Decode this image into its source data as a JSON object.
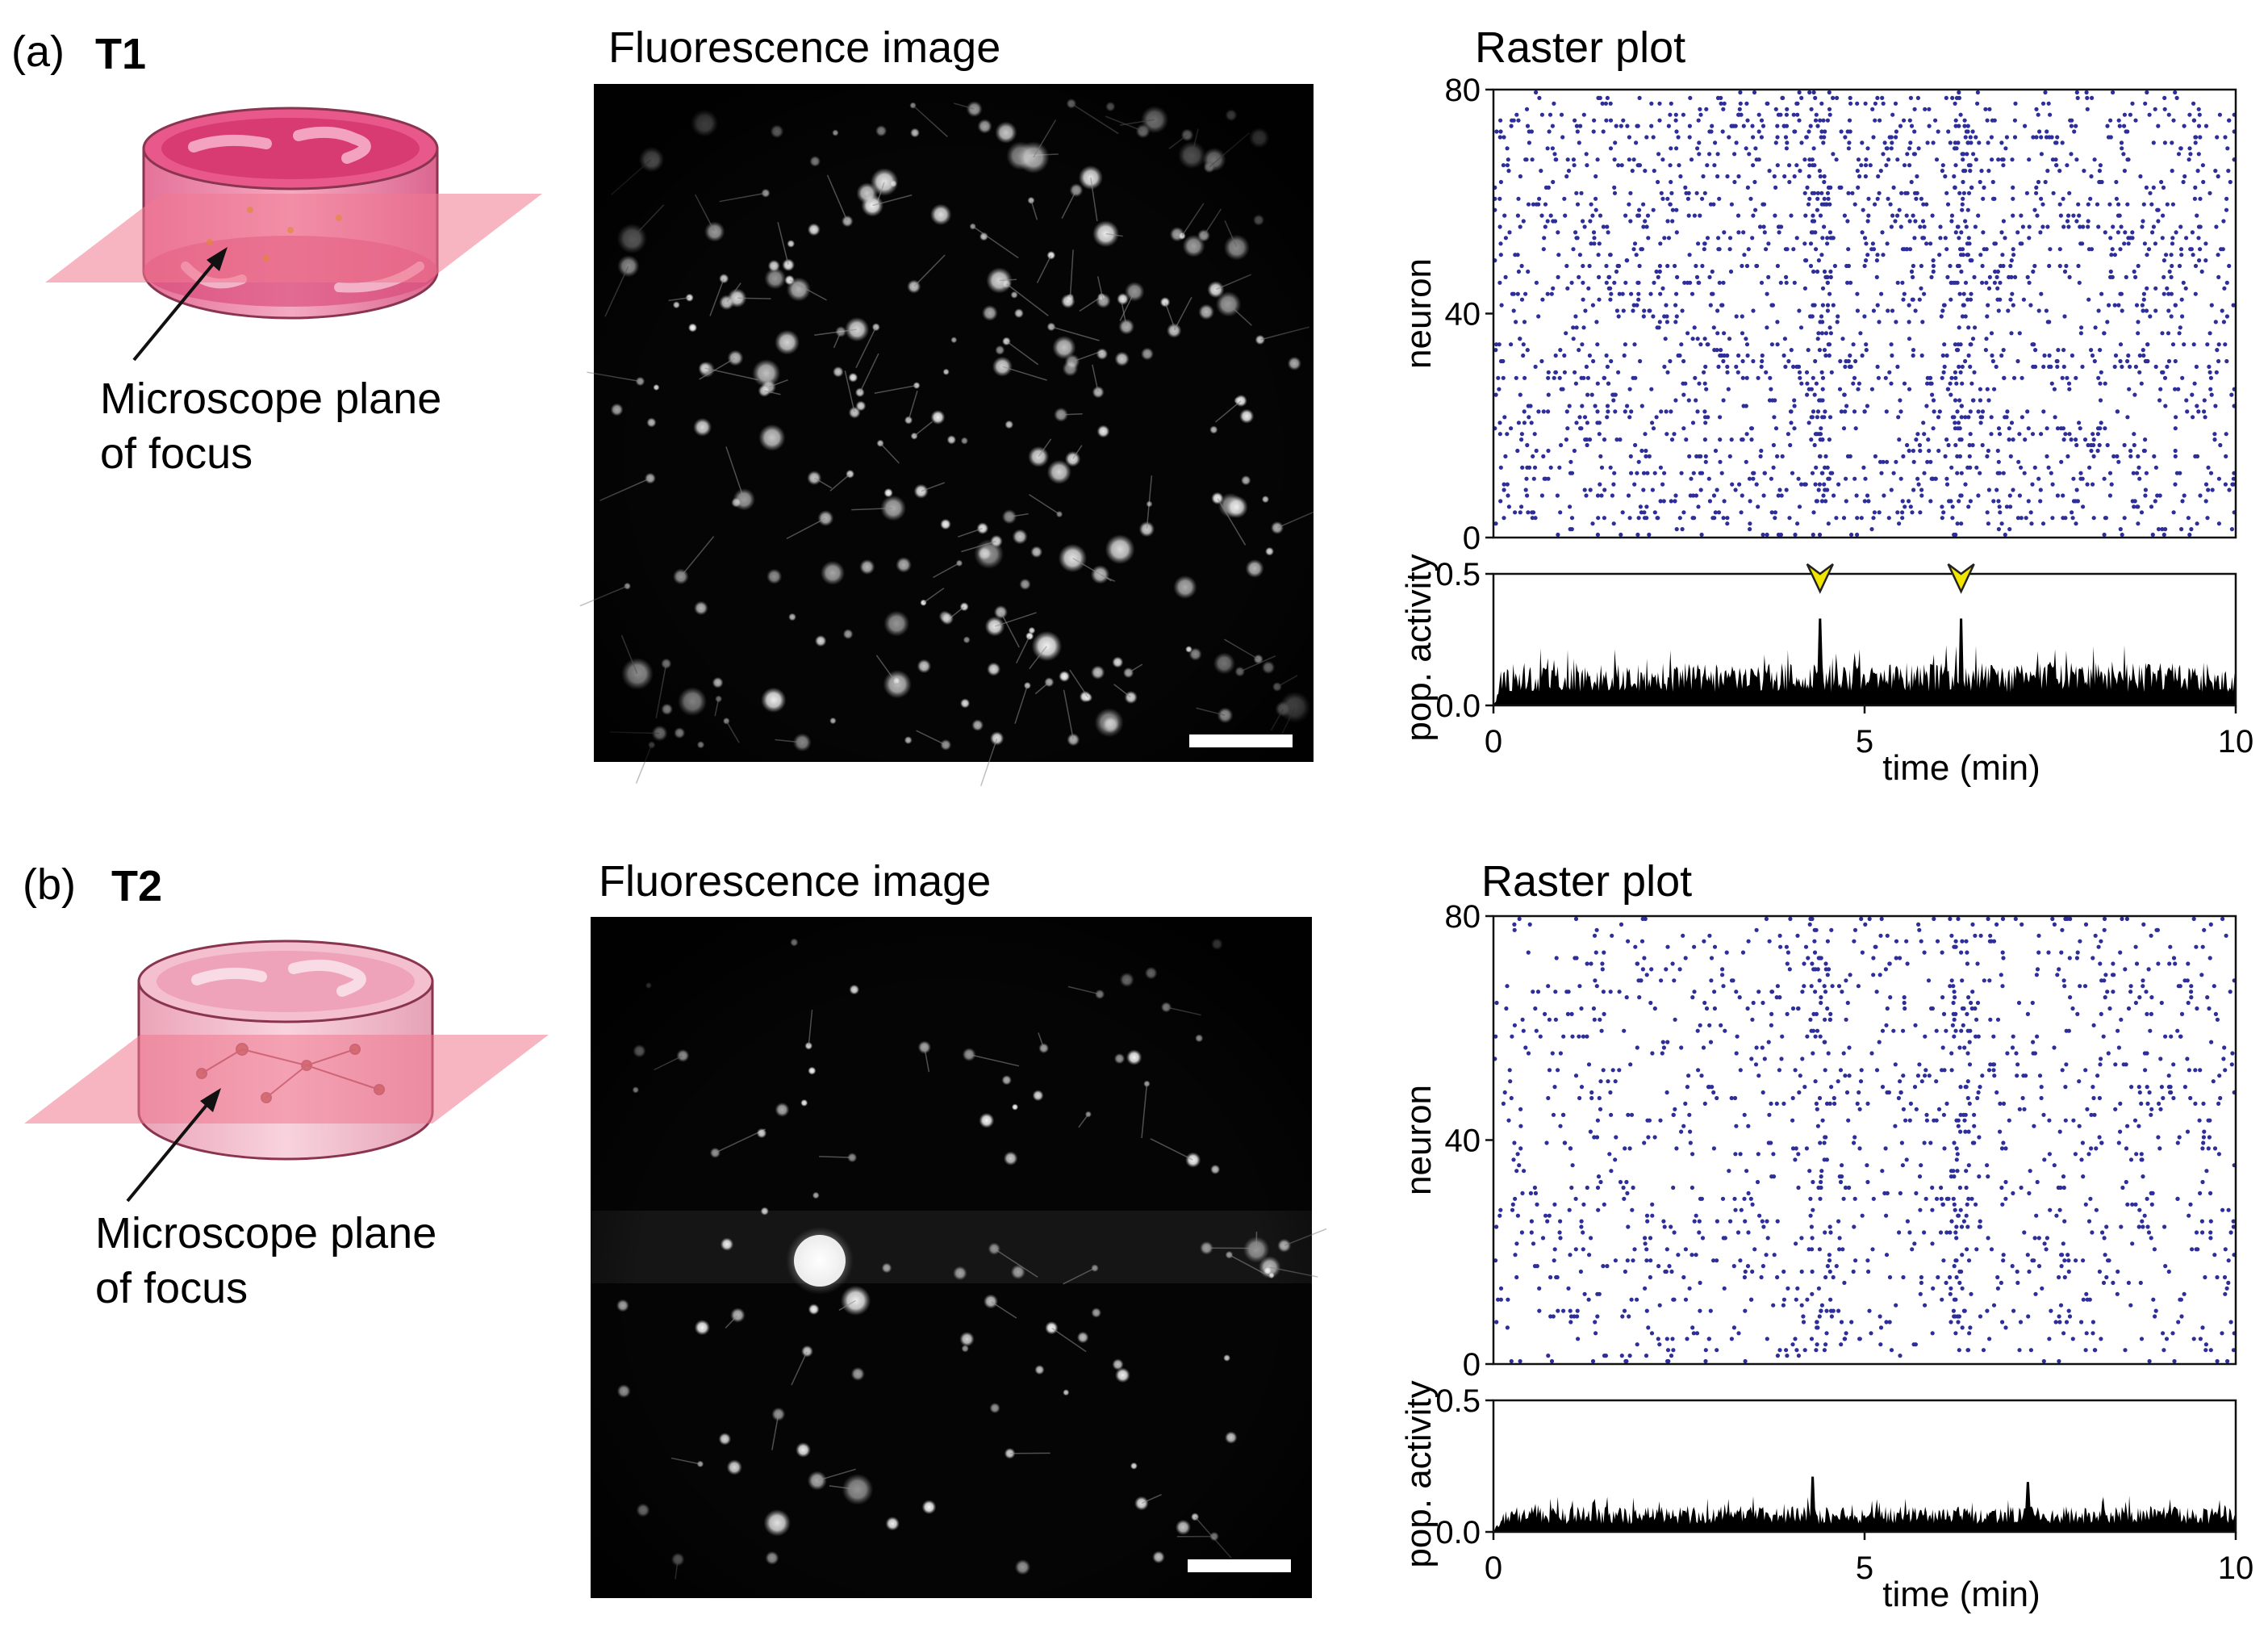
{
  "panels": [
    {
      "letter": "(a)",
      "tag": "T1",
      "dish_label_line1": "Microscope plane",
      "dish_label_line2": "of focus",
      "image_title": "Fluorescence image",
      "raster_title": "Raster plot"
    },
    {
      "letter": "(b)",
      "tag": "T2",
      "dish_label_line1": "Microscope plane",
      "dish_label_line2": "of focus",
      "image_title": "Fluorescence image",
      "raster_title": "Raster plot"
    }
  ],
  "colors": {
    "spike": "#2e2e9a",
    "activity": "#000000",
    "arrowhead": "#f2e600",
    "dish": "#e8608c",
    "plane": "#f08aa0",
    "micrograph_bg": "#050505"
  },
  "chart_data": [
    {
      "type": "scatter",
      "title": "Raster plot",
      "panel": "T1",
      "xlabel": "",
      "ylabel": "neuron",
      "xlim": [
        0,
        10
      ],
      "ylim": [
        0,
        80
      ],
      "yticks": [
        "0",
        "40",
        "80"
      ],
      "n_neurons": 80,
      "approx_spikes": 2400,
      "series": [
        {
          "values": []
        }
      ]
    },
    {
      "type": "area",
      "panel": "T1",
      "xlabel": "time (min)",
      "ylabel": "pop. activity",
      "xlim": [
        0,
        10
      ],
      "ylim": [
        0,
        0.5
      ],
      "xticks": [
        "0",
        "5",
        "10"
      ],
      "yticks": [
        "0.0",
        "0.5"
      ],
      "baseline_range": [
        0.05,
        0.2
      ],
      "peaks": [
        {
          "x": 4.4,
          "y": 0.33
        },
        {
          "x": 6.3,
          "y": 0.33
        }
      ],
      "annotations": [
        {
          "x": 4.4,
          "type": "arrowhead"
        },
        {
          "x": 6.3,
          "type": "arrowhead"
        }
      ]
    },
    {
      "type": "scatter",
      "title": "Raster plot",
      "panel": "T2",
      "xlabel": "",
      "ylabel": "neuron",
      "xlim": [
        0,
        10
      ],
      "ylim": [
        0,
        80
      ],
      "yticks": [
        "0",
        "40",
        "80"
      ],
      "n_neurons": 80,
      "approx_spikes": 1500,
      "series": [
        {
          "values": []
        }
      ]
    },
    {
      "type": "area",
      "panel": "T2",
      "xlabel": "time (min)",
      "ylabel": "pop. activity",
      "xlim": [
        0,
        10
      ],
      "ylim": [
        0,
        0.5
      ],
      "xticks": [
        "0",
        "5",
        "10"
      ],
      "yticks": [
        "0.0",
        "0.5"
      ],
      "baseline_range": [
        0.03,
        0.12
      ],
      "peaks": [
        {
          "x": 4.3,
          "y": 0.21
        },
        {
          "x": 7.2,
          "y": 0.19
        }
      ]
    }
  ]
}
